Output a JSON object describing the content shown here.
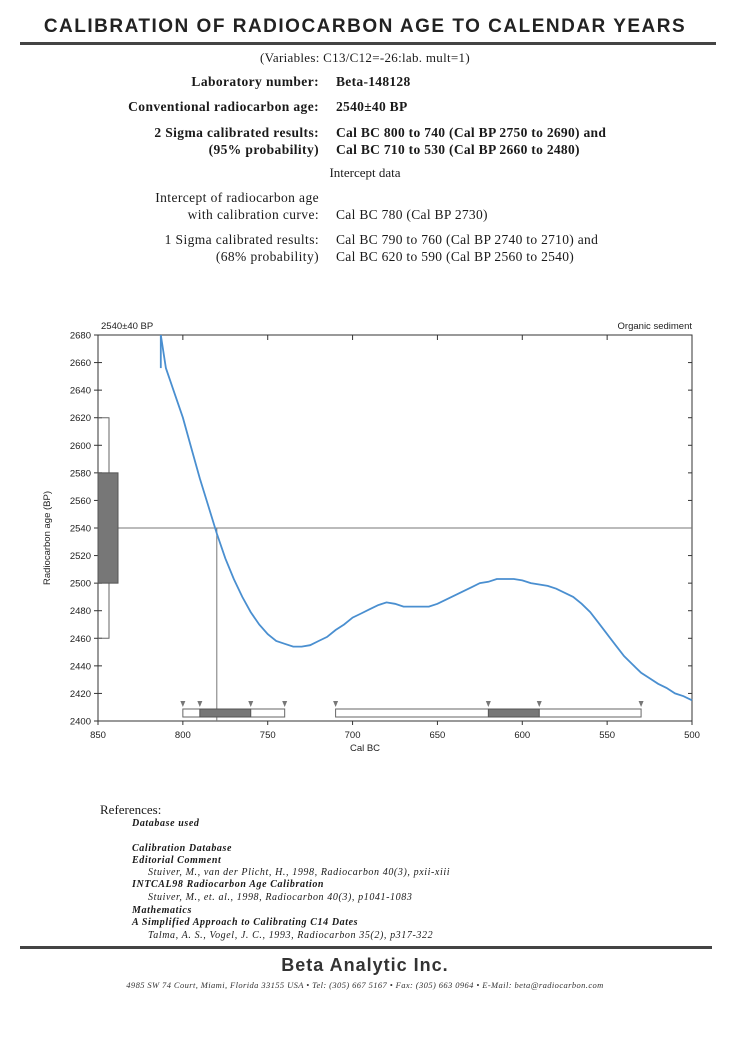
{
  "header": {
    "title": "CALIBRATION OF RADIOCARBON AGE TO CALENDAR YEARS",
    "variables": "(Variables: C13/C12=-26:lab. mult=1)"
  },
  "results": {
    "lab_label": "Laboratory number:",
    "lab_value": "Beta-148128",
    "conv_label": "Conventional radiocarbon age:",
    "conv_value": "2540±40 BP",
    "sigma2_label1": "2 Sigma calibrated results:",
    "sigma2_label2": "(95% probability)",
    "sigma2_value1": "Cal BC 800 to 740 (Cal BP 2750 to 2690) and",
    "sigma2_value2": "Cal BC 710 to 530 (Cal BP 2660 to 2480)",
    "intercept_heading": "Intercept data",
    "intercept_label1": "Intercept of radiocarbon age",
    "intercept_label2": "with calibration curve:",
    "intercept_value": "Cal BC 780 (Cal BP 2730)",
    "sigma1_label1": "1 Sigma calibrated results:",
    "sigma1_label2": "(68% probability)",
    "sigma1_value1": "Cal BC 790 to 760 (Cal BP 2740 to 2710) and",
    "sigma1_value2": "Cal BC 620 to 590 (Cal BP 2560 to 2540)"
  },
  "chart_data": {
    "type": "line",
    "top_left_label": "2540±40 BP",
    "top_right_label": "Organic sediment",
    "xlabel": "Cal BC",
    "ylabel": "Radiocarbon age (BP)",
    "xlim": [
      850,
      500
    ],
    "ylim": [
      2400,
      2680
    ],
    "x_ticks": [
      850,
      800,
      750,
      700,
      650,
      600,
      550,
      500
    ],
    "y_ticks": [
      2400,
      2420,
      2440,
      2460,
      2480,
      2500,
      2520,
      2540,
      2560,
      2580,
      2600,
      2620,
      2640,
      2660,
      2680
    ],
    "curve_color": "#4a8fd0",
    "series": [
      {
        "x": [
          813,
          810,
          805,
          800,
          795,
          790,
          785,
          780,
          775,
          770,
          765,
          760,
          755,
          750,
          745,
          740,
          735,
          730,
          725,
          720,
          715,
          710,
          705,
          700,
          695,
          690,
          685,
          680,
          675,
          670,
          665,
          660,
          655,
          650,
          645,
          640,
          635,
          630,
          625,
          620,
          615,
          610,
          605,
          600,
          595,
          590,
          585,
          580,
          575,
          570,
          565,
          560,
          555,
          550,
          545,
          540,
          535,
          530,
          525,
          520,
          515,
          510,
          505,
          500
        ],
        "y": [
          2680,
          2656,
          2638,
          2620,
          2598,
          2576,
          2556,
          2536,
          2518,
          2503,
          2490,
          2479,
          2470,
          2463,
          2458,
          2456,
          2454,
          2454,
          2455,
          2458,
          2461,
          2466,
          2470,
          2475,
          2478,
          2481,
          2484,
          2486,
          2485,
          2483,
          2483,
          2483,
          2483,
          2485,
          2488,
          2491,
          2494,
          2497,
          2500,
          2501,
          2503,
          2503,
          2503,
          2502,
          2500,
          2499,
          2498,
          2496,
          2493,
          2490,
          2485,
          2479,
          2471,
          2463,
          2455,
          2447,
          2441,
          2435,
          2431,
          2427,
          2424,
          2420,
          2418,
          2415
        ]
      }
    ],
    "measured_age": 2540,
    "age_sigma1": [
      2500,
      2580
    ],
    "age_sigma2": [
      2460,
      2620
    ],
    "intercept_x": 780,
    "sigma2_ranges": [
      [
        800,
        740
      ],
      [
        710,
        530
      ]
    ],
    "sigma1_ranges": [
      [
        790,
        760
      ],
      [
        620,
        590
      ]
    ]
  },
  "references": {
    "heading": "References:",
    "lines": [
      {
        "text": "Database used",
        "bold": true,
        "indent": 32
      },
      {
        "text": "Calibration Database",
        "bold": true,
        "indent": 32
      },
      {
        "text": "Editorial Comment",
        "bold": true,
        "indent": 32
      },
      {
        "text": "Stuiver, M., van der Plicht, H., 1998, Radiocarbon 40(3), pxii-xiii",
        "bold": false,
        "indent": 48
      },
      {
        "text": "INTCAL98 Radiocarbon Age Calibration",
        "bold": true,
        "indent": 32
      },
      {
        "text": "Stuiver, M., et. al., 1998, Radiocarbon 40(3), p1041-1083",
        "bold": false,
        "indent": 48
      },
      {
        "text": "Mathematics",
        "bold": true,
        "indent": 32
      },
      {
        "text": "A Simplified Approach to Calibrating C14 Dates",
        "bold": true,
        "indent": 32
      },
      {
        "text": "Talma, A. S., Vogel, J. C., 1993, Radiocarbon 35(2), p317-322",
        "bold": false,
        "indent": 48
      }
    ]
  },
  "footer": {
    "company": "Beta Analytic Inc.",
    "address": "4985 SW 74 Court, Miami, Florida 33155 USA • Tel: (305) 667 5167 • Fax: (305) 663 0964 • E-Mail: beta@radiocarbon.com"
  }
}
